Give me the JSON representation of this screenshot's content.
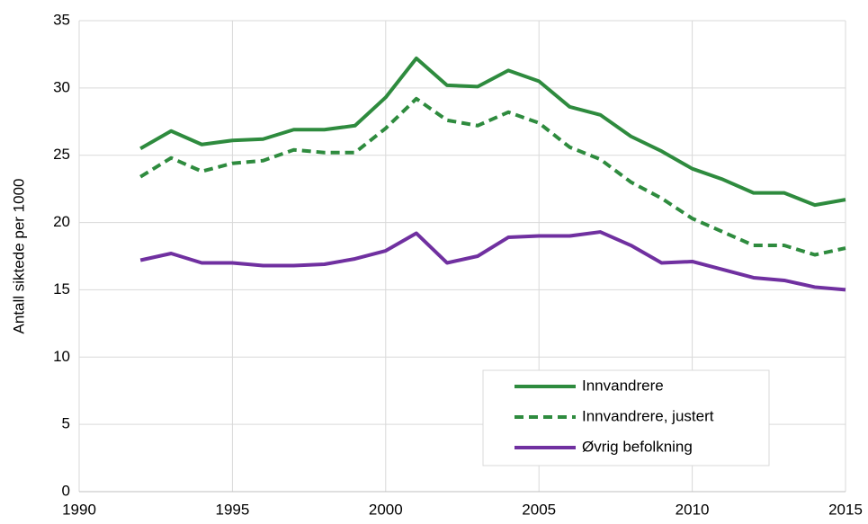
{
  "chart_data": {
    "type": "line",
    "y_label": "Antall siktede per 1000",
    "x": [
      1992,
      1993,
      1994,
      1995,
      1996,
      1997,
      1998,
      1999,
      2000,
      2001,
      2002,
      2003,
      2004,
      2005,
      2006,
      2007,
      2008,
      2009,
      2010,
      2011,
      2012,
      2013,
      2014,
      2015
    ],
    "series": [
      {
        "name": "Innvandrere",
        "color": "#2e8b3e",
        "dashed": false,
        "values": [
          25.5,
          26.8,
          25.8,
          26.1,
          26.2,
          26.9,
          26.9,
          27.2,
          29.3,
          32.2,
          30.2,
          30.1,
          31.3,
          30.5,
          28.6,
          28.0,
          26.4,
          25.3,
          24.0,
          23.2,
          22.2,
          22.2,
          21.3,
          21.7
        ]
      },
      {
        "name": "Innvandrere, justert",
        "color": "#2e8b3e",
        "dashed": true,
        "values": [
          23.4,
          24.8,
          23.8,
          24.4,
          24.6,
          25.4,
          25.2,
          25.2,
          27.0,
          29.2,
          27.6,
          27.2,
          28.2,
          27.4,
          25.6,
          24.7,
          23.0,
          21.8,
          20.3,
          19.3,
          18.3,
          18.3,
          17.6,
          18.1
        ]
      },
      {
        "name": "Øvrig befolkning",
        "color": "#7030a0",
        "dashed": false,
        "values": [
          17.2,
          17.7,
          17.0,
          17.0,
          16.8,
          16.8,
          16.9,
          17.3,
          17.9,
          19.2,
          17.0,
          17.5,
          18.9,
          19.0,
          19.0,
          19.3,
          18.3,
          17.0,
          17.1,
          16.5,
          15.9,
          15.7,
          15.2,
          15.0
        ]
      }
    ],
    "xlim": [
      1990,
      2015
    ],
    "xticks": [
      1990,
      1995,
      2000,
      2005,
      2010,
      2015
    ],
    "ylim": [
      0,
      35
    ],
    "yticks": [
      0,
      5,
      10,
      15,
      20,
      25,
      30,
      35
    ],
    "grid": true,
    "legend": "lower right"
  }
}
